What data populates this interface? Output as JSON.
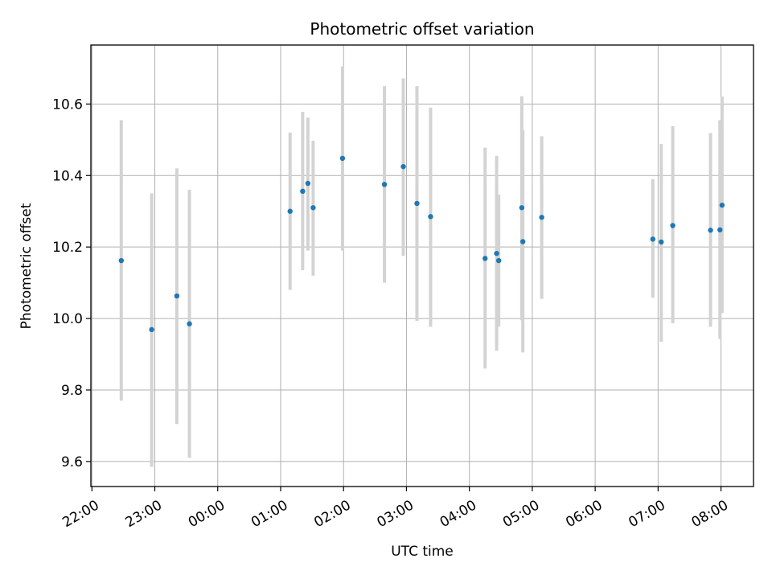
{
  "chart_data": {
    "type": "scatter",
    "title": "Photometric offset variation",
    "xlabel": "UTC time",
    "ylabel": "Photometric offset",
    "x_ticks": [
      "22:00",
      "23:00",
      "00:00",
      "01:00",
      "02:00",
      "03:00",
      "04:00",
      "05:00",
      "06:00",
      "07:00",
      "08:00"
    ],
    "y_ticks": [
      "9.6",
      "9.8",
      "10.0",
      "10.2",
      "10.4",
      "10.6"
    ],
    "xlim": [
      "21:59",
      "08:31"
    ],
    "ylim": [
      9.53,
      10.765
    ],
    "grid": true,
    "colors": {
      "point": "#1f77b4",
      "errorbar": "#d3d3d3",
      "grid": "#b0b0b0"
    },
    "points": [
      {
        "x": "22:28",
        "y": 10.162,
        "ylow": 9.77,
        "yhigh": 10.555
      },
      {
        "x": "22:57",
        "y": 9.969,
        "ylow": 9.585,
        "yhigh": 10.35
      },
      {
        "x": "23:21",
        "y": 10.063,
        "ylow": 9.705,
        "yhigh": 10.42
      },
      {
        "x": "23:33",
        "y": 9.985,
        "ylow": 9.61,
        "yhigh": 10.36
      },
      {
        "x": "01:09",
        "y": 10.3,
        "ylow": 10.08,
        "yhigh": 10.52
      },
      {
        "x": "01:21",
        "y": 10.356,
        "ylow": 10.135,
        "yhigh": 10.578
      },
      {
        "x": "01:26",
        "y": 10.378,
        "ylow": 10.19,
        "yhigh": 10.562
      },
      {
        "x": "01:31",
        "y": 10.31,
        "ylow": 10.12,
        "yhigh": 10.497
      },
      {
        "x": "01:59",
        "y": 10.448,
        "ylow": 10.19,
        "yhigh": 10.705
      },
      {
        "x": "02:39",
        "y": 10.375,
        "ylow": 10.1,
        "yhigh": 10.65
      },
      {
        "x": "02:57",
        "y": 10.425,
        "ylow": 10.175,
        "yhigh": 10.672
      },
      {
        "x": "03:10",
        "y": 10.322,
        "ylow": 9.993,
        "yhigh": 10.65
      },
      {
        "x": "03:23",
        "y": 10.285,
        "ylow": 9.977,
        "yhigh": 10.59
      },
      {
        "x": "04:15",
        "y": 10.168,
        "ylow": 9.86,
        "yhigh": 10.478
      },
      {
        "x": "04:26",
        "y": 10.182,
        "ylow": 9.91,
        "yhigh": 10.455
      },
      {
        "x": "04:28",
        "y": 10.162,
        "ylow": 9.977,
        "yhigh": 10.347
      },
      {
        "x": "04:50",
        "y": 10.31,
        "ylow": 9.995,
        "yhigh": 10.622
      },
      {
        "x": "04:51",
        "y": 10.215,
        "ylow": 9.905,
        "yhigh": 10.527
      },
      {
        "x": "05:09",
        "y": 10.283,
        "ylow": 10.055,
        "yhigh": 10.51
      },
      {
        "x": "06:55",
        "y": 10.222,
        "ylow": 10.058,
        "yhigh": 10.39
      },
      {
        "x": "07:03",
        "y": 10.214,
        "ylow": 9.935,
        "yhigh": 10.488
      },
      {
        "x": "07:14",
        "y": 10.26,
        "ylow": 9.987,
        "yhigh": 10.538
      },
      {
        "x": "07:50",
        "y": 10.247,
        "ylow": 9.977,
        "yhigh": 10.519
      },
      {
        "x": "07:59",
        "y": 10.248,
        "ylow": 9.943,
        "yhigh": 10.555
      },
      {
        "x": "08:01",
        "y": 10.317,
        "ylow": 10.015,
        "yhigh": 10.621
      }
    ]
  }
}
